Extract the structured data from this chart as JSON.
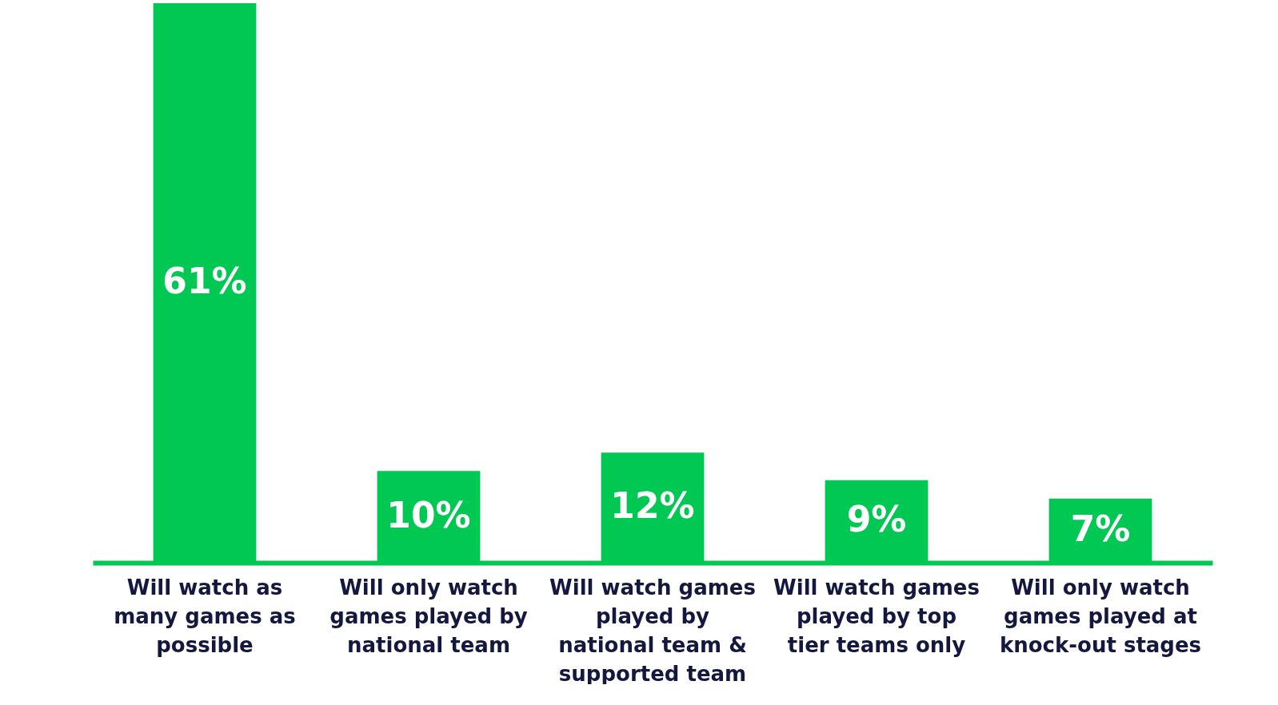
{
  "chart_data": {
    "type": "bar",
    "categories": [
      "Will watch as many games as possible",
      "Will only watch games played by national team",
      "Will watch games played by national team & supported team",
      "Will watch games played by top tier teams only",
      "Will only watch games played at knock-out stages"
    ],
    "values": [
      61,
      10,
      12,
      9,
      7
    ],
    "value_labels": [
      "61%",
      "10%",
      "12%",
      "9%",
      "7%"
    ],
    "color": "#00c853",
    "tick_labels": "x",
    "grid": false
  }
}
